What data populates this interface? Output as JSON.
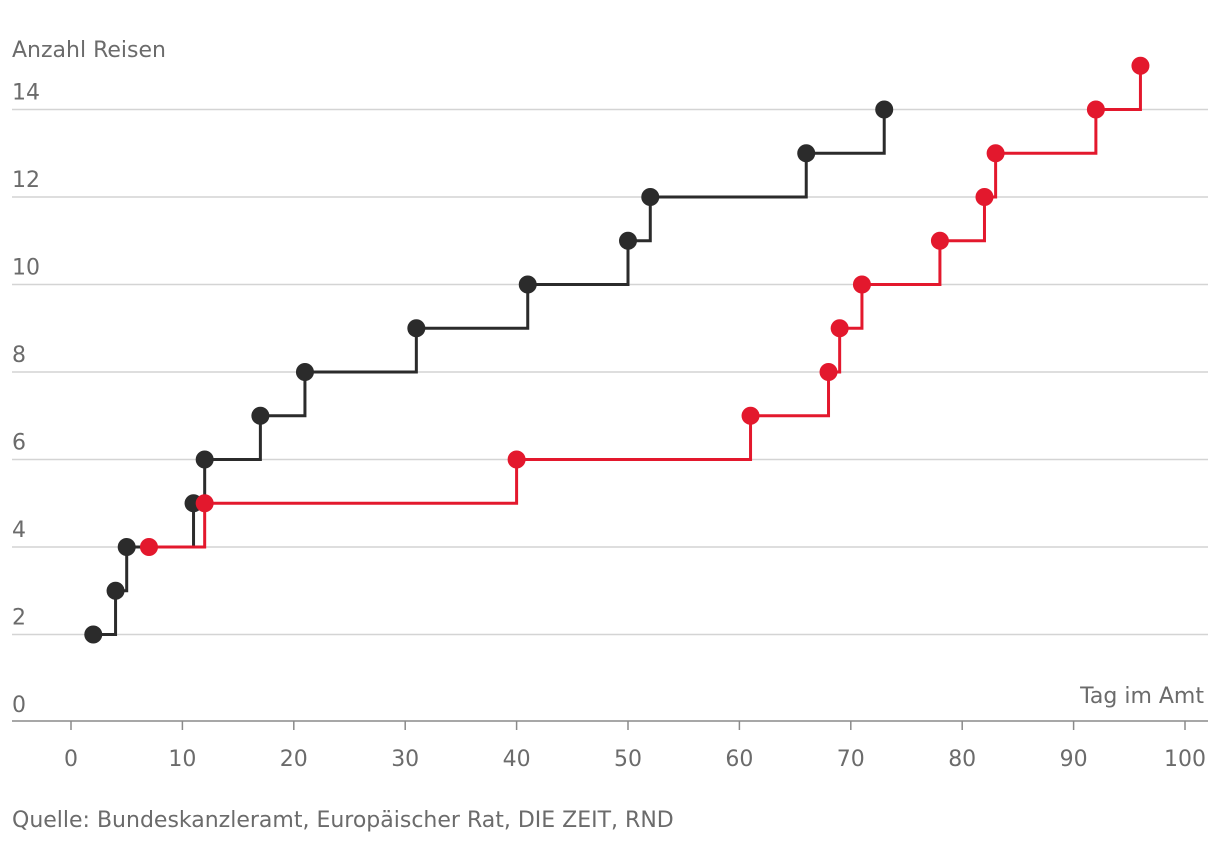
{
  "chart_data": {
    "type": "line",
    "step": true,
    "title": "",
    "ylabel": "Anzahl Reisen",
    "xlabel": "Tag im Amt",
    "xlim": [
      0,
      100
    ],
    "ylim": [
      0,
      15
    ],
    "xticks": [
      0,
      10,
      20,
      30,
      40,
      50,
      60,
      70,
      80,
      90,
      100
    ],
    "yticks": [
      0,
      2,
      4,
      6,
      8,
      10,
      12,
      14
    ],
    "grid": true,
    "series": [
      {
        "name": "schwarz",
        "color": "#2b2b2b",
        "points": [
          [
            2,
            2
          ],
          [
            4,
            3
          ],
          [
            5,
            4
          ],
          [
            11,
            5
          ],
          [
            12,
            6
          ],
          [
            17,
            7
          ],
          [
            21,
            8
          ],
          [
            31,
            9
          ],
          [
            41,
            10
          ],
          [
            50,
            11
          ],
          [
            52,
            12
          ],
          [
            66,
            13
          ],
          [
            73,
            14
          ]
        ]
      },
      {
        "name": "rot",
        "color": "#e3182d",
        "points": [
          [
            7,
            4
          ],
          [
            12,
            5
          ],
          [
            40,
            6
          ],
          [
            61,
            7
          ],
          [
            68,
            8
          ],
          [
            69,
            9
          ],
          [
            71,
            10
          ],
          [
            78,
            11
          ],
          [
            82,
            12
          ],
          [
            83,
            13
          ],
          [
            92,
            14
          ],
          [
            96,
            15
          ]
        ]
      }
    ],
    "source": "Quelle: Bundeskanzleramt, Europäischer Rat, DIE ZEIT, RND"
  }
}
